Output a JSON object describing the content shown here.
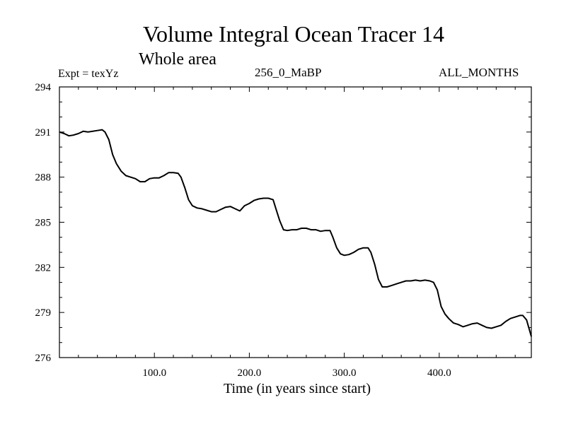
{
  "chart_data": {
    "type": "line",
    "title": "Volume Integral Ocean Tracer 14",
    "subtitle": "Whole area",
    "annotations": {
      "experiment": "Expt = texYz",
      "run": "256_0_MaBP",
      "period": "ALL_MONTHS"
    },
    "xlabel": "Time (in years since start)",
    "ylabel": "",
    "xlim": [
      0,
      497
    ],
    "ylim": [
      276,
      294
    ],
    "x_ticks": [
      100,
      200,
      300,
      400
    ],
    "x_tick_labels": [
      "100.0",
      "200.0",
      "300.0",
      "400.0"
    ],
    "y_ticks": [
      276,
      279,
      282,
      285,
      288,
      291,
      294
    ],
    "y_tick_labels": [
      "276",
      "279",
      "282",
      "285",
      "288",
      "291",
      "294"
    ],
    "grid": false,
    "series": [
      {
        "color": "#000000",
        "x": [
          0,
          5,
          10,
          15,
          20,
          25,
          30,
          35,
          40,
          45,
          48,
          52,
          56,
          60,
          65,
          70,
          75,
          80,
          85,
          90,
          95,
          100,
          105,
          110,
          115,
          120,
          125,
          128,
          132,
          136,
          140,
          145,
          150,
          155,
          160,
          165,
          170,
          175,
          180,
          185,
          190,
          195,
          200,
          205,
          210,
          215,
          220,
          225,
          228,
          232,
          236,
          240,
          245,
          250,
          255,
          260,
          265,
          270,
          275,
          280,
          285,
          288,
          292,
          296,
          300,
          305,
          310,
          315,
          320,
          325,
          328,
          332,
          336,
          340,
          345,
          350,
          355,
          360,
          365,
          370,
          375,
          380,
          385,
          390,
          394,
          398,
          402,
          406,
          410,
          415,
          420,
          425,
          430,
          435,
          440,
          445,
          450,
          455,
          460,
          465,
          470,
          475,
          480,
          485,
          488,
          492,
          497
        ],
        "y": [
          291.0,
          290.9,
          290.75,
          290.8,
          290.9,
          291.05,
          291.0,
          291.05,
          291.1,
          291.15,
          291.0,
          290.5,
          289.5,
          288.9,
          288.4,
          288.1,
          288.0,
          287.9,
          287.7,
          287.7,
          287.9,
          287.95,
          287.95,
          288.1,
          288.3,
          288.3,
          288.25,
          288.0,
          287.3,
          286.5,
          286.1,
          285.95,
          285.9,
          285.8,
          285.7,
          285.7,
          285.85,
          286.0,
          286.05,
          285.9,
          285.75,
          286.1,
          286.25,
          286.45,
          286.55,
          286.6,
          286.6,
          286.5,
          285.9,
          285.1,
          284.5,
          284.45,
          284.5,
          284.5,
          284.6,
          284.6,
          284.5,
          284.5,
          284.4,
          284.45,
          284.45,
          284.0,
          283.3,
          282.9,
          282.8,
          282.85,
          283.0,
          283.2,
          283.3,
          283.3,
          283.0,
          282.2,
          281.2,
          280.7,
          280.7,
          280.8,
          280.9,
          281.0,
          281.1,
          281.1,
          281.15,
          281.1,
          281.15,
          281.1,
          281.0,
          280.5,
          279.4,
          278.9,
          278.6,
          278.3,
          278.2,
          278.05,
          278.15,
          278.25,
          278.3,
          278.15,
          278.0,
          277.95,
          278.05,
          278.15,
          278.4,
          278.6,
          278.7,
          278.8,
          278.8,
          278.5,
          277.4
        ]
      }
    ]
  }
}
